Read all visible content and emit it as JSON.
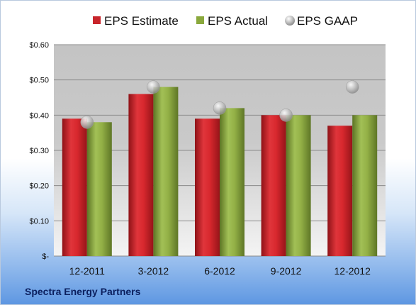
{
  "company": "Spectra Energy Partners",
  "colors": {
    "estimate": "#c8252b",
    "actual": "#8aa83c",
    "gaap": "#b4b4b4"
  },
  "chart_data": {
    "type": "bar",
    "categories": [
      "12-2011",
      "3-2012",
      "6-2012",
      "9-2012",
      "12-2012"
    ],
    "series": [
      {
        "name": "EPS Estimate",
        "kind": "bar",
        "values": [
          0.39,
          0.46,
          0.39,
          0.4,
          0.37
        ]
      },
      {
        "name": "EPS Actual",
        "kind": "bar",
        "values": [
          0.38,
          0.48,
          0.42,
          0.4,
          0.4
        ]
      },
      {
        "name": "EPS GAAP",
        "kind": "marker",
        "values": [
          0.38,
          0.48,
          0.42,
          0.4,
          0.48
        ]
      }
    ],
    "ylim": [
      0,
      0.6
    ],
    "yticks": [
      0,
      0.1,
      0.2,
      0.3,
      0.4,
      0.5,
      0.6
    ],
    "ytick_labels": [
      "$-",
      "$0.10",
      "$0.20",
      "$0.30",
      "$0.40",
      "$0.50",
      "$0.60"
    ],
    "grid": true,
    "legend_position": "top"
  }
}
